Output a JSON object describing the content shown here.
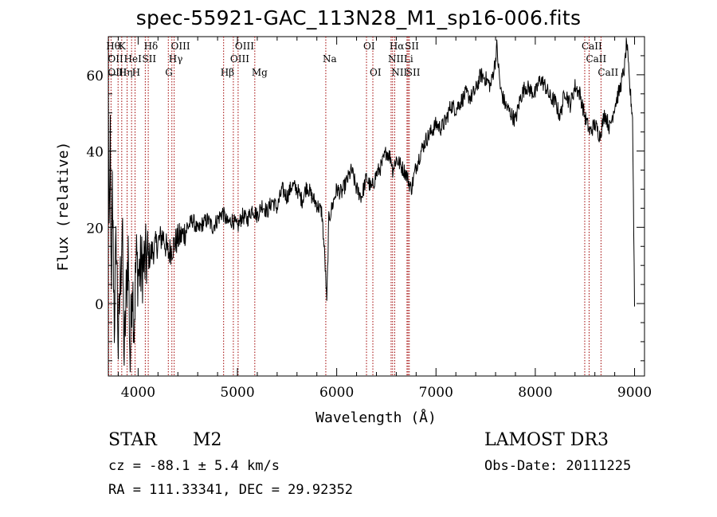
{
  "chart_data": {
    "type": "line",
    "title": "spec-55921-GAC_113N28_M1_sp16-006.fits",
    "xlabel": "Wavelength (Å)",
    "ylabel": "Flux (relative)",
    "xlim": [
      3700,
      9100
    ],
    "ylim": [
      -19,
      70
    ],
    "xticks": [
      4000,
      5000,
      6000,
      7000,
      8000,
      9000
    ],
    "xtick_labels": [
      "4000",
      "5000",
      "6000",
      "7000",
      "8000",
      "9000"
    ],
    "yticks": [
      0,
      20,
      40,
      60
    ],
    "ytick_labels": [
      "0",
      "20",
      "40",
      "60"
    ],
    "series": [
      {
        "name": "flux",
        "x": [
          3700,
          3710,
          3720,
          3730,
          3740,
          3760,
          3780,
          3800,
          3820,
          3840,
          3860,
          3880,
          3900,
          3920,
          3940,
          3960,
          3980,
          4000,
          4050,
          4100,
          4150,
          4200,
          4250,
          4300,
          4350,
          4400,
          4450,
          4500,
          4550,
          4600,
          4650,
          4700,
          4750,
          4800,
          4850,
          4900,
          4950,
          5000,
          5050,
          5100,
          5150,
          5200,
          5250,
          5300,
          5350,
          5400,
          5450,
          5500,
          5550,
          5600,
          5650,
          5700,
          5750,
          5800,
          5850,
          5880,
          5900,
          5920,
          5950,
          6000,
          6050,
          6100,
          6150,
          6200,
          6250,
          6300,
          6350,
          6400,
          6450,
          6500,
          6550,
          6563,
          6600,
          6650,
          6700,
          6750,
          6800,
          6850,
          6900,
          6950,
          7000,
          7050,
          7100,
          7150,
          7200,
          7250,
          7300,
          7350,
          7400,
          7450,
          7500,
          7550,
          7600,
          7610,
          7650,
          7700,
          7750,
          7800,
          7850,
          7900,
          7950,
          8000,
          8050,
          8100,
          8150,
          8200,
          8250,
          8300,
          8350,
          8400,
          8450,
          8500,
          8550,
          8600,
          8650,
          8700,
          8750,
          8800,
          8850,
          8900,
          8920,
          8950,
          8980,
          9000
        ],
        "y": [
          52,
          10,
          46,
          -8,
          30,
          -5,
          18,
          -12,
          6,
          20,
          -15,
          2,
          14,
          -16,
          8,
          -6,
          12,
          8,
          10,
          12,
          14,
          16,
          18,
          13,
          15,
          17,
          18,
          20,
          22,
          19,
          21,
          22,
          20,
          22,
          24,
          21,
          22,
          20,
          23,
          22,
          25,
          23,
          26,
          24,
          27,
          25,
          30,
          28,
          31,
          30,
          27,
          31,
          28,
          26,
          24,
          12,
          0,
          22,
          25,
          30,
          29,
          32,
          35,
          30,
          28,
          33,
          30,
          34,
          36,
          40,
          38,
          35,
          38,
          36,
          34,
          30,
          36,
          40,
          43,
          45,
          47,
          46,
          48,
          52,
          51,
          53,
          55,
          54,
          56,
          60,
          59,
          57,
          64,
          68,
          56,
          52,
          50,
          48,
          54,
          57,
          56,
          55,
          59,
          57,
          54,
          53,
          49,
          56,
          52,
          57,
          55,
          49,
          45,
          47,
          44,
          50,
          46,
          52,
          56,
          62,
          69,
          57,
          49,
          0
        ]
      }
    ],
    "annotations": {
      "row1": [
        {
          "x": 3710,
          "label": "Hθ"
        },
        {
          "x": 3835,
          "label": "K"
        },
        {
          "x": 4090,
          "label": "Hδ"
        },
        {
          "x": 4362,
          "label": "OIII"
        },
        {
          "x": 5007,
          "label": "OIII"
        },
        {
          "x": 6300,
          "label": "OI"
        },
        {
          "x": 6563,
          "label": "Hα"
        },
        {
          "x": 6718,
          "label": "SII"
        },
        {
          "x": 8498,
          "label": "CaII"
        }
      ],
      "row2": [
        {
          "x": 3727,
          "label": "OII"
        },
        {
          "x": 3889,
          "label": "HeI"
        },
        {
          "x": 4072,
          "label": "SII"
        },
        {
          "x": 4340,
          "label": "Hγ"
        },
        {
          "x": 4959,
          "label": "OIII"
        },
        {
          "x": 5890,
          "label": "Na"
        },
        {
          "x": 6548,
          "label": "NII"
        },
        {
          "x": 6708,
          "label": "Li"
        },
        {
          "x": 8542,
          "label": "CaII"
        }
      ],
      "row3": [
        {
          "x": 3727,
          "label": "OIII"
        },
        {
          "x": 3835,
          "label": "Hη"
        },
        {
          "x": 3970,
          "label": "H"
        },
        {
          "x": 4304,
          "label": "G"
        },
        {
          "x": 4861,
          "label": "Hβ"
        },
        {
          "x": 5175,
          "label": "Mg"
        },
        {
          "x": 6364,
          "label": "OI"
        },
        {
          "x": 6584,
          "label": "NII"
        },
        {
          "x": 6731,
          "label": "SII"
        },
        {
          "x": 8662,
          "label": "CaII"
        }
      ]
    },
    "line_markers": [
      3704,
      3727,
      3798,
      3835,
      3889,
      3934,
      3969,
      4072,
      4102,
      4304,
      4340,
      4363,
      4861,
      4959,
      5007,
      5175,
      5890,
      6300,
      6364,
      6548,
      6563,
      6584,
      6708,
      6718,
      6731,
      8498,
      8542,
      8662
    ],
    "line_color": "#a00000"
  },
  "info": {
    "object_class": "STAR",
    "subclass": "M2",
    "survey": "LAMOST DR3",
    "cz_line": "cz = -88.1 ± 5.4 km/s",
    "obs_date_line": "Obs-Date: 20111225",
    "coords_line": "RA = 111.33341, DEC =  29.92352"
  }
}
